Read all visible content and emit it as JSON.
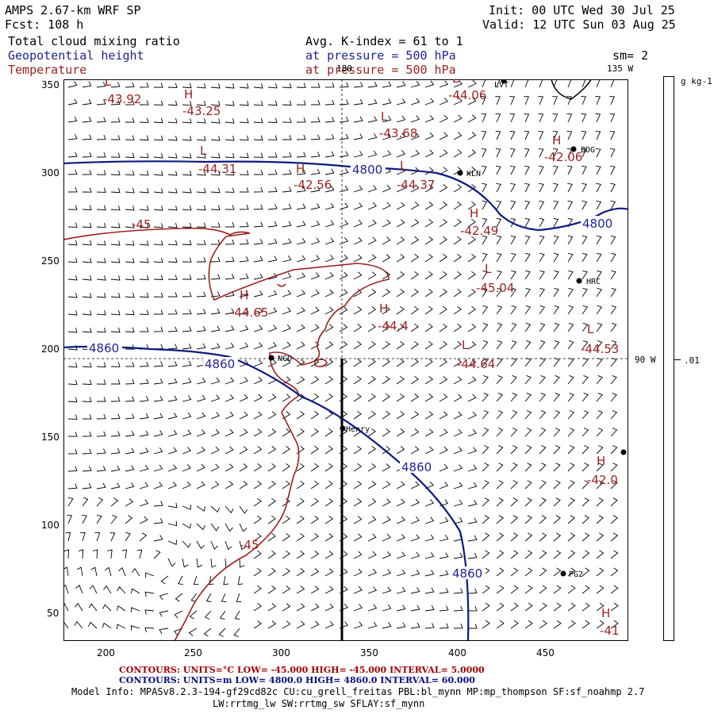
{
  "header": {
    "title": "AMPS 2.67-km WRF SP",
    "init": "Init: 00 UTC Wed 30 Jul 25",
    "forecast": "Fcst: 108 h",
    "valid": "Valid: 12 UTC Sun 03 Aug 25",
    "field1": "Total cloud mixing ratio",
    "field2": "Geopotential height",
    "field3": "Temperature",
    "avg": "Avg. K-index =  61 to  1",
    "pressure1": "at pressure =  500 hPa",
    "pressure2": "at pressure =  500 hPa",
    "sm": "sm= 2"
  },
  "axes": {
    "x_ticks": [
      "200",
      "250",
      "300",
      "350",
      "400",
      "450"
    ],
    "y_ticks": [
      "350",
      "300",
      "250",
      "200",
      "150",
      "100",
      "50"
    ],
    "lon_top": "180",
    "lon_135": "135 W",
    "lon_90": "90 W"
  },
  "colorbar": {
    "unit": "g kg-1",
    "value": ".01"
  },
  "stations": [
    {
      "name": "LVT"
    },
    {
      "name": "BDG"
    },
    {
      "name": "KLN"
    },
    {
      "name": "HRC"
    },
    {
      "name": "NGO"
    },
    {
      "name": "Henry"
    },
    {
      "name": "PG2"
    }
  ],
  "labels": {
    "temperature": [
      "L",
      "-43.92",
      "H",
      "-43.25",
      "L",
      "-44.31",
      "H",
      "-42.56",
      "L",
      "-43.68",
      "L",
      "-44.06",
      "H",
      "-42.06",
      "L",
      "-44.37",
      "H",
      "-42.49",
      "-45",
      "L",
      "-45.04",
      "H",
      "-44.65",
      "H",
      "-44.4",
      "L",
      "-44.64",
      "L",
      "-44.53",
      "H",
      "-42.0",
      "-45",
      "H",
      "-41"
    ],
    "height": [
      "4800",
      "4800",
      "4860",
      "4860",
      "4860",
      "4860"
    ]
  },
  "footer": {
    "red_line": "CONTOURS:  UNITS=°C  LOW=  -45.000       HIGH=  -45.000       INTERVAL=    5.0000",
    "blue_line": "CONTOURS:  UNITS=m   LOW=   4800.0       HIGH=   4860.0       INTERVAL=    60.000",
    "model1": "Model Info: MPASv8.2.3-194-gf29cd82c CU:cu_grell_freitas PBL:bl_mynn MP:mp_thompson SF:sf_noahmp 2.7",
    "model2": "LW:rrtmg_lw SW:rrtmg_sw SFLAY:sf_mynn"
  },
  "colors": {
    "temperature": "#9c1f1f",
    "height": "#1f1f9c"
  }
}
